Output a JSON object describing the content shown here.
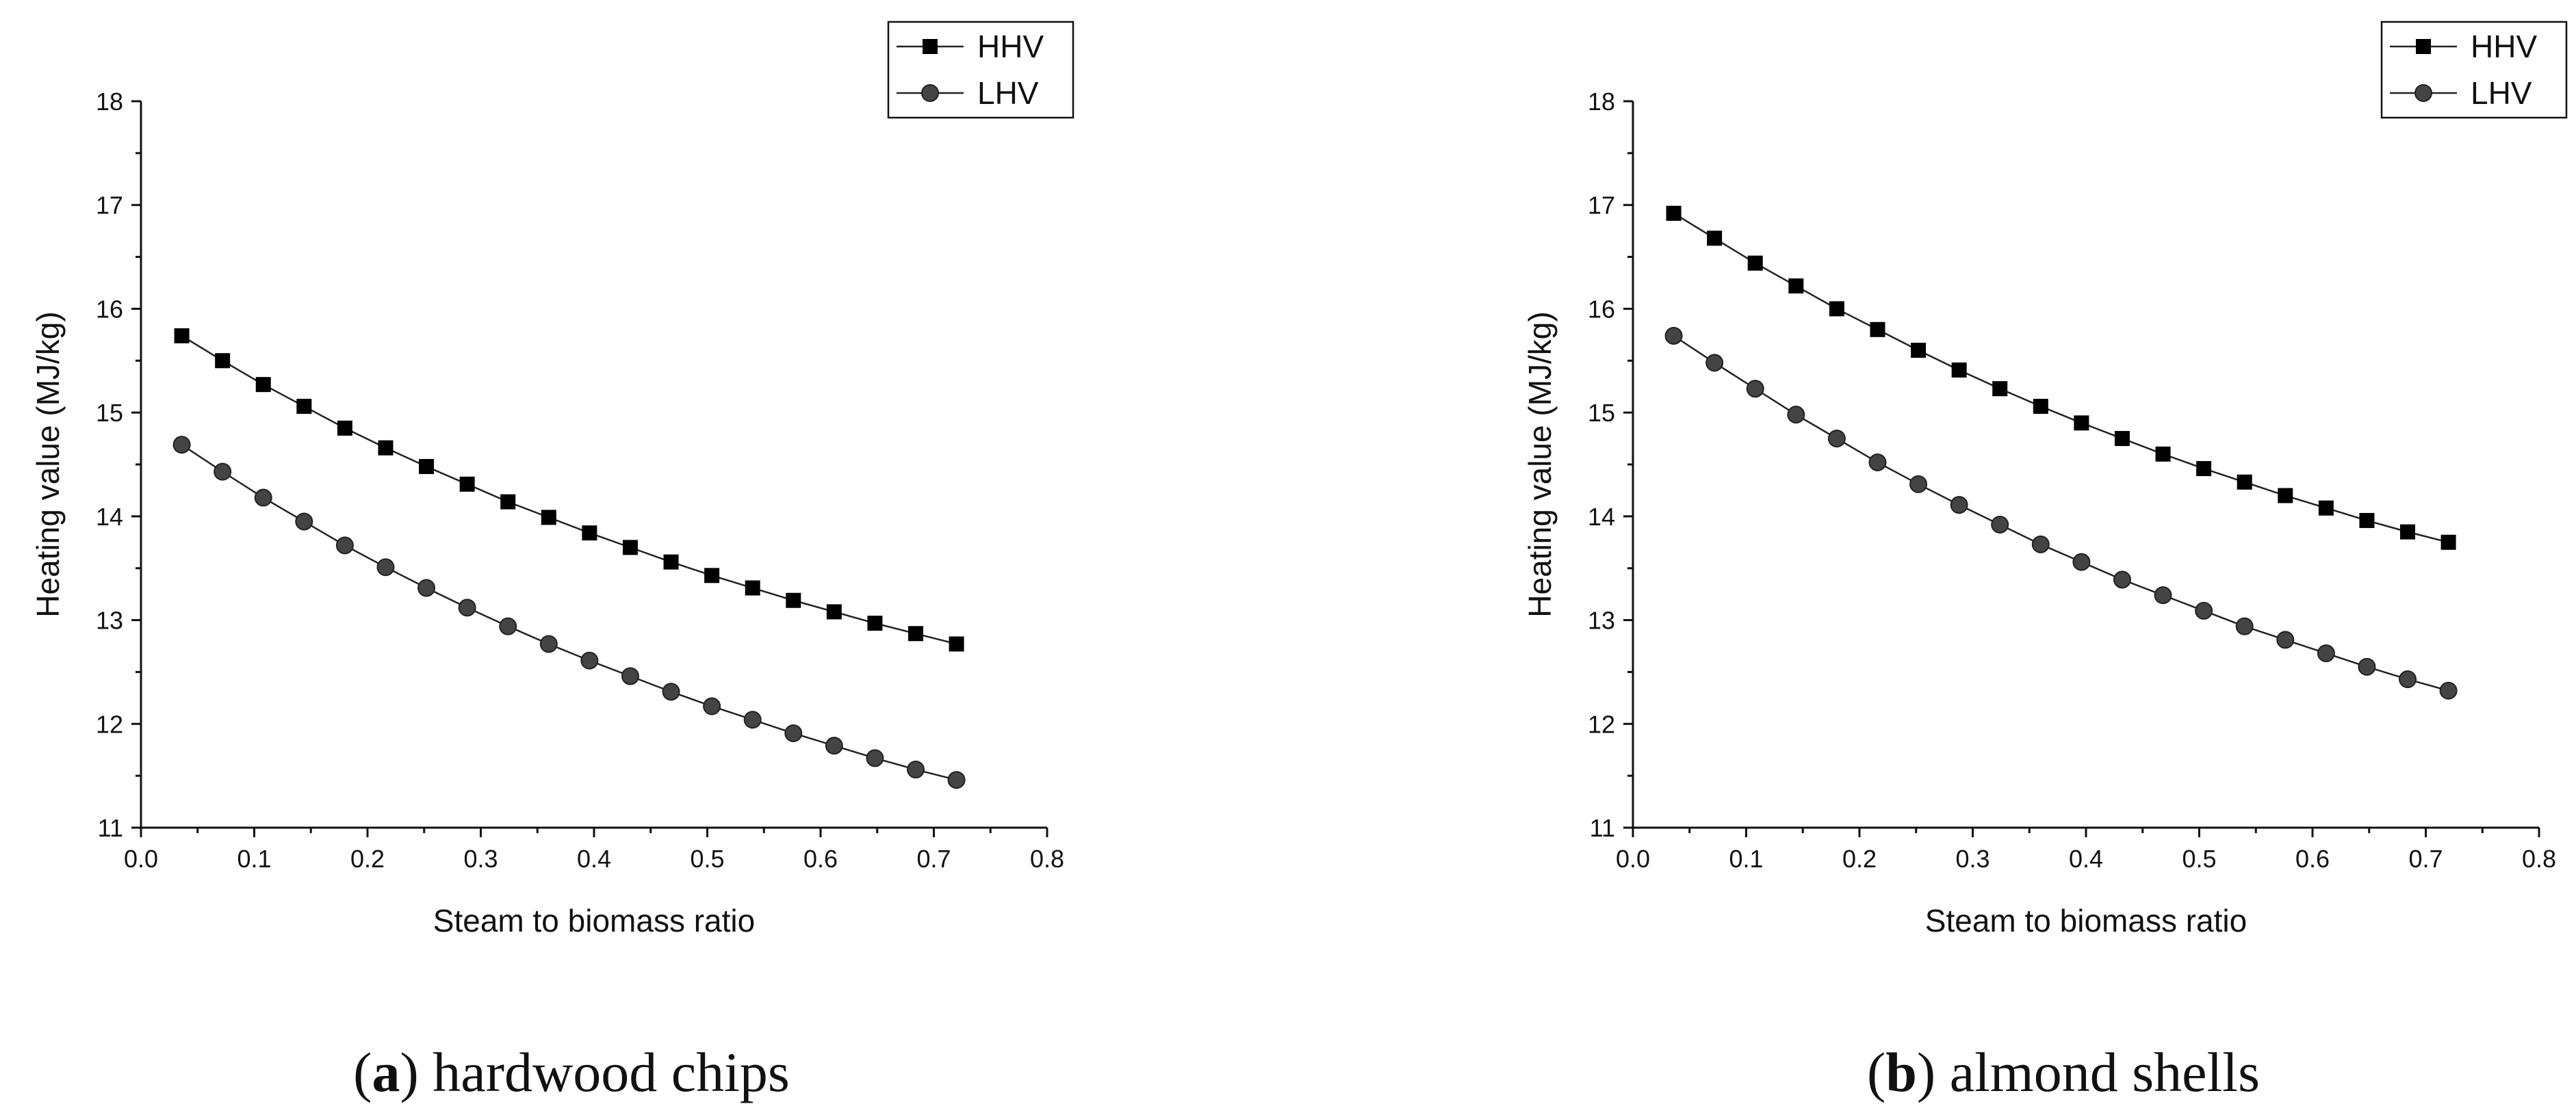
{
  "chart_data": [
    {
      "type": "line",
      "caption_letter": "a",
      "caption_text": "hardwood chips",
      "xlabel": "Steam to biomass ratio",
      "ylabel": "Heating value (MJ/kg)",
      "xlim": [
        0.0,
        0.8
      ],
      "ylim": [
        11,
        18
      ],
      "xticks": [
        "0.0",
        "0.1",
        "0.2",
        "0.3",
        "0.4",
        "0.5",
        "0.6",
        "0.7",
        "0.8"
      ],
      "yticks": [
        "11",
        "12",
        "13",
        "14",
        "15",
        "16",
        "17",
        "18"
      ],
      "x": [
        0.036,
        0.072,
        0.108,
        0.144,
        0.18,
        0.216,
        0.252,
        0.288,
        0.324,
        0.36,
        0.396,
        0.432,
        0.468,
        0.504,
        0.54,
        0.576,
        0.612,
        0.648,
        0.684,
        0.72
      ],
      "series": [
        {
          "name": "HHV",
          "marker": "square",
          "values": [
            15.74,
            15.5,
            15.27,
            15.06,
            14.85,
            14.66,
            14.48,
            14.31,
            14.14,
            13.99,
            13.84,
            13.7,
            13.56,
            13.43,
            13.31,
            13.19,
            13.08,
            12.97,
            12.87,
            12.77
          ]
        },
        {
          "name": "LHV",
          "marker": "circle",
          "values": [
            14.69,
            14.43,
            14.18,
            13.95,
            13.72,
            13.51,
            13.31,
            13.12,
            12.94,
            12.77,
            12.61,
            12.46,
            12.31,
            12.17,
            12.04,
            11.91,
            11.79,
            11.67,
            11.56,
            11.46
          ]
        }
      ],
      "legend_position": "top-right"
    },
    {
      "type": "line",
      "caption_letter": "b",
      "caption_text": "almond shells",
      "xlabel": "Steam to biomass ratio",
      "ylabel": "Heating value (MJ/kg)",
      "xlim": [
        0.0,
        0.8
      ],
      "ylim": [
        11,
        18
      ],
      "xticks": [
        "0.0",
        "0.1",
        "0.2",
        "0.3",
        "0.4",
        "0.5",
        "0.6",
        "0.7",
        "0.8"
      ],
      "yticks": [
        "11",
        "12",
        "13",
        "14",
        "15",
        "16",
        "17",
        "18"
      ],
      "x": [
        0.036,
        0.072,
        0.108,
        0.144,
        0.18,
        0.216,
        0.252,
        0.288,
        0.324,
        0.36,
        0.396,
        0.432,
        0.468,
        0.504,
        0.54,
        0.576,
        0.612,
        0.648,
        0.684,
        0.72
      ],
      "series": [
        {
          "name": "HHV",
          "marker": "square",
          "values": [
            16.92,
            16.68,
            16.44,
            16.22,
            16.0,
            15.8,
            15.6,
            15.41,
            15.23,
            15.06,
            14.9,
            14.75,
            14.6,
            14.46,
            14.33,
            14.2,
            14.08,
            13.96,
            13.85,
            13.75
          ]
        },
        {
          "name": "LHV",
          "marker": "circle",
          "values": [
            15.74,
            15.48,
            15.23,
            14.98,
            14.75,
            14.52,
            14.31,
            14.11,
            13.92,
            13.73,
            13.56,
            13.39,
            13.24,
            13.09,
            12.94,
            12.81,
            12.68,
            12.55,
            12.43,
            12.32
          ]
        }
      ],
      "legend_position": "top-right"
    }
  ],
  "colors": {
    "hhv_marker": "#000000",
    "lhv_marker": "#444444",
    "line": "#222222"
  }
}
